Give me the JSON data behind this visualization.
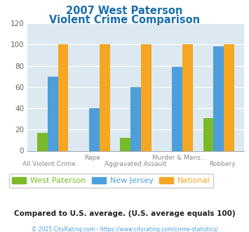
{
  "title_line1": "2007 West Paterson",
  "title_line2": "Violent Crime Comparison",
  "cat_labels_top": [
    "",
    "Rape",
    "",
    "Murder & Mans...",
    ""
  ],
  "cat_labels_bot": [
    "All Violent Crime",
    "",
    "Aggravated Assault",
    "",
    "Robbery"
  ],
  "west_paterson": [
    17,
    0,
    12,
    0,
    31
  ],
  "new_jersey": [
    70,
    40,
    60,
    79,
    98
  ],
  "national": [
    100,
    100,
    100,
    100,
    100
  ],
  "colors": {
    "west_paterson": "#7aba2a",
    "new_jersey": "#4d9fdb",
    "national": "#f5a623"
  },
  "ylim": [
    0,
    120
  ],
  "yticks": [
    0,
    20,
    40,
    60,
    80,
    100,
    120
  ],
  "title_color": "#1a6faf",
  "plot_bg": "#dce9f0",
  "footnote": "Compared to U.S. average. (U.S. average equals 100)",
  "copyright": "© 2025 CityRating.com - https://www.cityrating.com/crime-statistics/",
  "legend_labels": [
    "West Paterson",
    "New Jersey",
    "National"
  ],
  "legend_colors": [
    "#7aba2a",
    "#4d9fdb",
    "#f5a623"
  ]
}
